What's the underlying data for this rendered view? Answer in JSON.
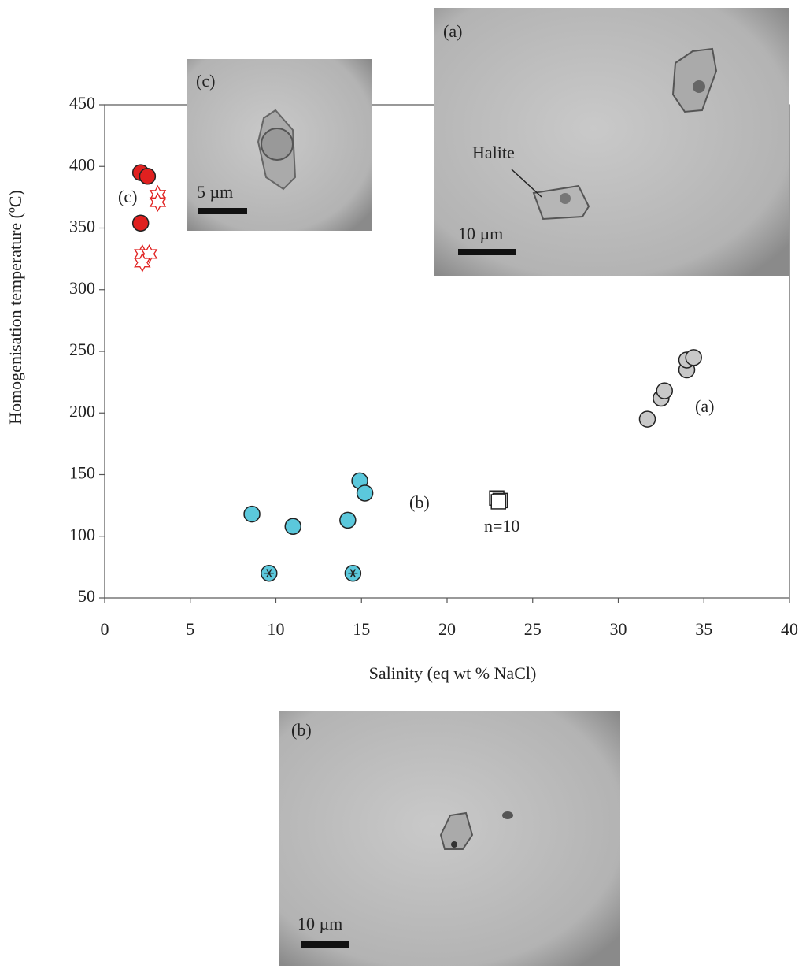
{
  "chart_data": {
    "type": "scatter",
    "xlabel": "Salinity (eq wt % NaCl)",
    "ylabel": "Homogenisation temperature (ºC)",
    "xlim": [
      0,
      40
    ],
    "xticks": [
      0,
      5,
      10,
      15,
      20,
      25,
      30,
      35,
      40
    ],
    "ylim": [
      50,
      450
    ],
    "yticks": [
      50,
      100,
      150,
      200,
      250,
      300,
      350,
      400,
      450
    ],
    "annotations": [
      "(c)",
      "(a)",
      "(b)",
      "n=10"
    ],
    "series": [
      {
        "marker": "circle",
        "color": "#e0201f",
        "x": [
          2.1,
          2.5,
          2.1
        ],
        "values": [
          395,
          392,
          354
        ]
      },
      {
        "marker": "star",
        "color": "#e0201f",
        "x": [
          3.1,
          3.1,
          2.2,
          2.6,
          2.2
        ],
        "values": [
          377,
          371,
          329,
          329,
          322
        ]
      },
      {
        "marker": "circle",
        "color": "#c8c8c8",
        "x": [
          31.7,
          32.5,
          32.7,
          34.0,
          34.0,
          34.4
        ],
        "values": [
          195,
          212,
          218,
          235,
          243,
          245
        ]
      },
      {
        "marker": "circle",
        "color": "#5bc8dc",
        "x": [
          8.6,
          11.0,
          14.2,
          14.9,
          15.2
        ],
        "values": [
          118,
          108,
          113,
          145,
          135
        ]
      },
      {
        "marker": "asterisk",
        "color": "#5bc8dc",
        "x": [
          9.6,
          14.5
        ],
        "values": [
          70,
          70
        ]
      },
      {
        "marker": "square",
        "color": "#ffffff",
        "x": [
          22.9,
          23.1,
          23.0
        ],
        "values": [
          131,
          129,
          128
        ]
      }
    ]
  },
  "insets": {
    "c": {
      "label": "(c)",
      "scale": "5 µm"
    },
    "a": {
      "label": "(a)",
      "feature": "Halite",
      "scale": "10 µm"
    },
    "b": {
      "label": "(b)",
      "scale": "10 µm"
    }
  }
}
